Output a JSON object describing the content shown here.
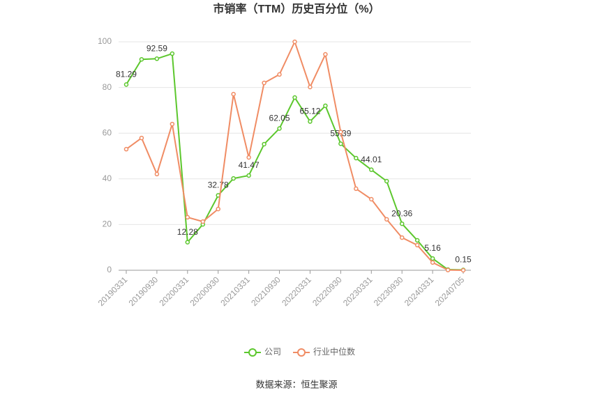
{
  "chart_data": {
    "type": "line",
    "title": "市销率（TTM）历史百分位（%）",
    "source": "数据来源：恒生聚源",
    "categories": [
      "20190331",
      null,
      "20190930",
      null,
      "20200331",
      null,
      "20200930",
      null,
      "20210331",
      null,
      "20210930",
      null,
      "20220331",
      null,
      "20220930",
      null,
      "20230331",
      null,
      "20230930",
      null,
      "20240331",
      null,
      "20240705"
    ],
    "series": [
      {
        "name": "公司",
        "color": "#5cc72d",
        "values": [
          81.29,
          92.3,
          92.59,
          94.8,
          12.28,
          20.1,
          32.78,
          40.2,
          41.47,
          55.2,
          62.05,
          75.6,
          65.12,
          72.0,
          55.39,
          49.1,
          44.01,
          39.0,
          20.36,
          13.1,
          5.16,
          0.3,
          0.15
        ],
        "value_labels": [
          "81.29",
          null,
          "92.59",
          null,
          "12.28",
          null,
          "32.78",
          null,
          "41.47",
          null,
          "62.05",
          null,
          "65.12",
          null,
          "55.39",
          null,
          "44.01",
          null,
          "20.36",
          null,
          "5.16",
          null,
          "0.15"
        ]
      },
      {
        "name": "行业中位数",
        "color": "#f08c64",
        "values": [
          53.0,
          57.9,
          42.1,
          64.0,
          23.2,
          21.3,
          26.8,
          77.1,
          49.4,
          82.0,
          85.7,
          100,
          80.2,
          94.5,
          60.5,
          35.7,
          31.1,
          22.3,
          14.3,
          11.0,
          3.4,
          0.1,
          0
        ]
      }
    ],
    "ylim": [
      0,
      100
    ],
    "yticks": [
      0,
      20,
      40,
      60,
      80,
      100
    ],
    "grid": true
  }
}
